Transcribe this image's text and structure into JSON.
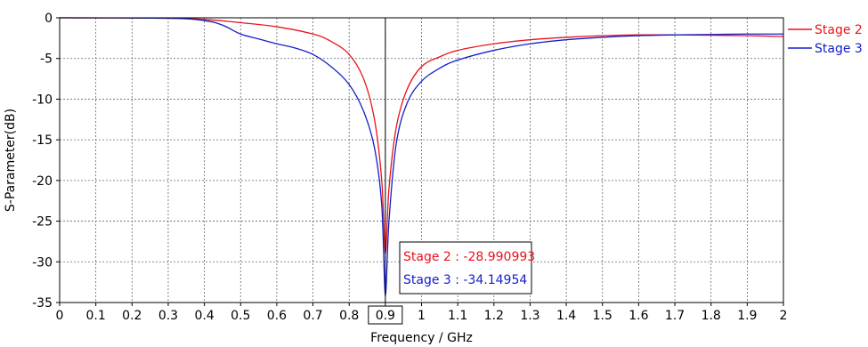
{
  "chart_data": {
    "type": "line",
    "xlabel": "Frequency / GHz",
    "ylabel": "S-Parameter(dB)",
    "xlim": [
      0,
      2
    ],
    "ylim": [
      -35,
      0
    ],
    "xticks": [
      "0",
      "0.1",
      "0.2",
      "0.3",
      "0.4",
      "0.5",
      "0.6",
      "0.7",
      "0.8",
      "0.9",
      "1",
      "1.1",
      "1.2",
      "1.3",
      "1.4",
      "1.5",
      "1.6",
      "1.7",
      "1.8",
      "1.9",
      "2"
    ],
    "yticks": [
      "0",
      "-5",
      "-10",
      "-15",
      "-20",
      "-25",
      "-30",
      "-35"
    ],
    "highlighted_xtick": "0.9",
    "grid": true,
    "legend_position": "right",
    "series": [
      {
        "name": "Stage 2",
        "color": "#e8141c",
        "x": [
          0,
          0.3,
          0.4,
          0.5,
          0.6,
          0.7,
          0.75,
          0.8,
          0.84,
          0.87,
          0.89,
          0.9,
          0.91,
          0.93,
          0.96,
          1.0,
          1.05,
          1.1,
          1.2,
          1.3,
          1.4,
          1.5,
          1.6,
          1.7,
          1.8,
          1.9,
          2.0
        ],
        "y": [
          0,
          -0.05,
          -0.2,
          -0.6,
          -1.1,
          -2.0,
          -2.9,
          -4.5,
          -7.5,
          -12.5,
          -20.0,
          -28.99,
          -21.0,
          -13.5,
          -8.8,
          -6.0,
          -4.8,
          -4.0,
          -3.2,
          -2.7,
          -2.4,
          -2.2,
          -2.1,
          -2.1,
          -2.15,
          -2.2,
          -2.3
        ]
      },
      {
        "name": "Stage 3",
        "color": "#1520c8",
        "x": [
          0,
          0.3,
          0.4,
          0.45,
          0.5,
          0.55,
          0.6,
          0.65,
          0.7,
          0.75,
          0.8,
          0.84,
          0.87,
          0.89,
          0.9,
          0.91,
          0.93,
          0.96,
          1.0,
          1.05,
          1.1,
          1.2,
          1.3,
          1.4,
          1.5,
          1.6,
          1.7,
          1.8,
          1.9,
          2.0
        ],
        "y": [
          0,
          -0.05,
          -0.35,
          -0.9,
          -2.0,
          -2.6,
          -3.2,
          -3.7,
          -4.5,
          -6.0,
          -8.2,
          -11.5,
          -16.0,
          -23.0,
          -34.15,
          -25.0,
          -15.5,
          -10.5,
          -7.8,
          -6.2,
          -5.2,
          -4.0,
          -3.2,
          -2.7,
          -2.4,
          -2.2,
          -2.1,
          -2.05,
          -2.0,
          -2.0
        ]
      }
    ],
    "marker": {
      "x": 0.9,
      "readouts": [
        {
          "text": "Stage 2 : -28.990993",
          "color": "#e8141c"
        },
        {
          "text": "Stage 3 : -34.14954",
          "color": "#1520c8"
        }
      ]
    }
  }
}
